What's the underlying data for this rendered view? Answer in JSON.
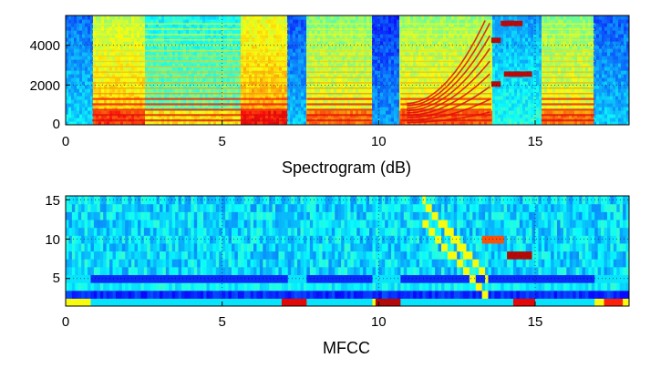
{
  "chart_data": [
    {
      "type": "heatmap",
      "title": "",
      "xlabel": "Spectrogram (dB)",
      "ylabel": "",
      "xlim": [
        0,
        18
      ],
      "ylim": [
        0,
        5500
      ],
      "xticks": [
        0,
        5,
        10,
        15
      ],
      "yticks": [
        0,
        2000,
        4000
      ],
      "xtick_labels": [
        "0",
        "5",
        "10",
        "15"
      ],
      "ytick_labels": [
        "0",
        "2000",
        "4000"
      ],
      "grid": true,
      "colormap": "jet",
      "segments": [
        {
          "start": 0.0,
          "end": 0.85,
          "intensity": 0.35
        },
        {
          "start": 0.85,
          "end": 2.5,
          "intensity": 0.68
        },
        {
          "start": 2.5,
          "end": 5.6,
          "intensity": 0.5
        },
        {
          "start": 5.6,
          "end": 7.1,
          "intensity": 0.72
        },
        {
          "start": 7.1,
          "end": 7.7,
          "intensity": 0.32
        },
        {
          "start": 7.7,
          "end": 9.8,
          "intensity": 0.62
        },
        {
          "start": 9.8,
          "end": 10.7,
          "intensity": 0.28
        },
        {
          "start": 10.7,
          "end": 13.6,
          "intensity": 0.64
        },
        {
          "start": 13.6,
          "end": 15.2,
          "intensity": 0.4
        },
        {
          "start": 15.2,
          "end": 16.9,
          "intensity": 0.62
        },
        {
          "start": 16.9,
          "end": 18.0,
          "intensity": 0.33
        }
      ]
    },
    {
      "type": "heatmap",
      "title": "",
      "xlabel": "MFCC",
      "ylabel": "",
      "xlim": [
        0,
        18
      ],
      "ylim": [
        1.5,
        15.5
      ],
      "xticks": [
        0,
        5,
        10,
        15
      ],
      "yticks": [
        5,
        10,
        15
      ],
      "xtick_labels": [
        "0",
        "5",
        "10",
        "15"
      ],
      "ytick_labels": [
        "5",
        "10",
        "15"
      ],
      "grid": true,
      "colormap": "jet",
      "hotspots": [
        {
          "x": 7.3,
          "coef": 2,
          "value": 0.9
        },
        {
          "x": 10.3,
          "coef": 2,
          "value": 0.95
        },
        {
          "x": 14.7,
          "coef": 2,
          "value": 0.9
        },
        {
          "x": 17.5,
          "coef": 2,
          "value": 0.85
        },
        {
          "x": 14.5,
          "coef": 8,
          "value": 0.95
        },
        {
          "x": 13.7,
          "coef": 10,
          "value": 0.8
        }
      ]
    }
  ]
}
